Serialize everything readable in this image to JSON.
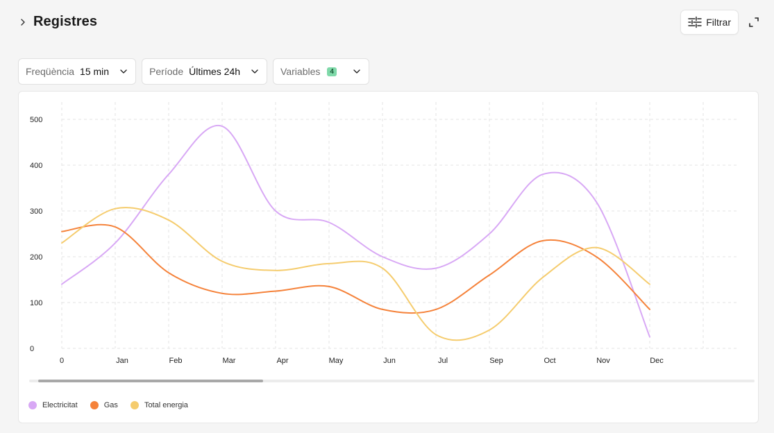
{
  "header": {
    "title": "Registres",
    "filter_label": "Filtrar"
  },
  "controls": {
    "frequency": {
      "label": "Freqüència",
      "value": "15 min"
    },
    "period": {
      "label": "Període",
      "value": "Últimes 24h"
    },
    "variables": {
      "label": "Variables",
      "count": "4"
    }
  },
  "colors": {
    "electricitat": "#d8a8f5",
    "gas": "#f5823a",
    "total": "#f5cc6e",
    "grid": "#e3e3e3"
  },
  "chart_data": {
    "type": "line",
    "categories": [
      "0",
      "Jan",
      "Feb",
      "Mar",
      "Apr",
      "May",
      "Jun",
      "Jul",
      "Sep",
      "Oct",
      "Nov",
      "Dec"
    ],
    "y_ticks": [
      "0",
      "100",
      "200",
      "300",
      "400",
      "500"
    ],
    "ylim": [
      0,
      500
    ],
    "series": [
      {
        "name": "Electricitat",
        "color_key": "electricitat",
        "values": [
          140,
          230,
          380,
          485,
          300,
          275,
          200,
          175,
          250,
          380,
          320,
          25
        ]
      },
      {
        "name": "Gas",
        "color_key": "gas",
        "values": [
          255,
          265,
          165,
          120,
          125,
          135,
          85,
          85,
          160,
          235,
          200,
          85
        ]
      },
      {
        "name": "Total energia",
        "color_key": "total",
        "values": [
          230,
          305,
          280,
          190,
          170,
          185,
          175,
          30,
          40,
          155,
          220,
          140
        ]
      }
    ],
    "legend_position": "bottom-left"
  }
}
